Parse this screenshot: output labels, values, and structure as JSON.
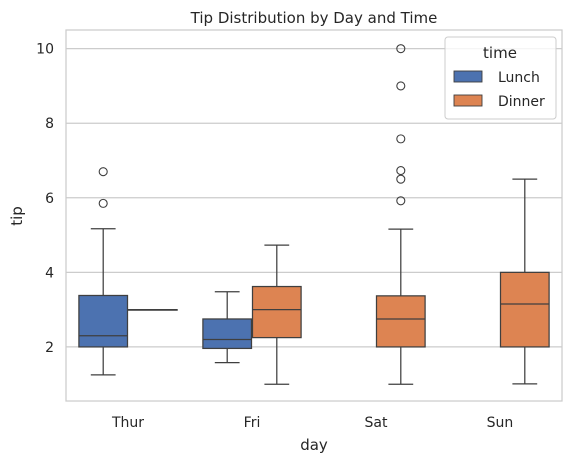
{
  "chart_data": {
    "type": "box",
    "title": "Tip Distribution by Day and Time",
    "xlabel": "day",
    "ylabel": "tip",
    "categories": [
      "Thur",
      "Fri",
      "Sat",
      "Sun"
    ],
    "yticks": [
      2,
      4,
      6,
      8,
      10
    ],
    "ylim": [
      0.55,
      10.5
    ],
    "grid": "horizontal",
    "legend": {
      "title": "time",
      "placement": "top-right",
      "entries": [
        {
          "label": "Lunch",
          "color": "#4c72b0"
        },
        {
          "label": "Dinner",
          "color": "#dd8452"
        }
      ]
    },
    "series": [
      {
        "name": "Lunch",
        "color": "#4c72b0",
        "boxes": [
          {
            "category": "Thur",
            "whisker_low": 1.25,
            "q1": 2.0,
            "median": 2.3,
            "q3": 3.38,
            "whisker_high": 5.17,
            "outliers": [
              5.85,
              6.7
            ]
          },
          {
            "category": "Fri",
            "whisker_low": 1.58,
            "q1": 1.96,
            "median": 2.2,
            "q3": 2.75,
            "whisker_high": 3.48,
            "outliers": []
          }
        ]
      },
      {
        "name": "Dinner",
        "color": "#dd8452",
        "boxes": [
          {
            "category": "Thur",
            "whisker_low": 3.0,
            "q1": 3.0,
            "median": 3.0,
            "q3": 3.0,
            "whisker_high": 3.0,
            "outliers": []
          },
          {
            "category": "Fri",
            "whisker_low": 1.0,
            "q1": 2.25,
            "median": 3.0,
            "q3": 3.62,
            "whisker_high": 4.73,
            "outliers": []
          },
          {
            "category": "Sat",
            "whisker_low": 1.0,
            "q1": 2.0,
            "median": 2.75,
            "q3": 3.37,
            "whisker_high": 5.16,
            "outliers": [
              5.92,
              6.5,
              6.73,
              7.58,
              9.0,
              10.0
            ]
          },
          {
            "category": "Sun",
            "whisker_low": 1.01,
            "q1": 2.0,
            "median": 3.15,
            "q3": 4.0,
            "whisker_high": 6.5,
            "outliers": []
          }
        ]
      }
    ]
  }
}
